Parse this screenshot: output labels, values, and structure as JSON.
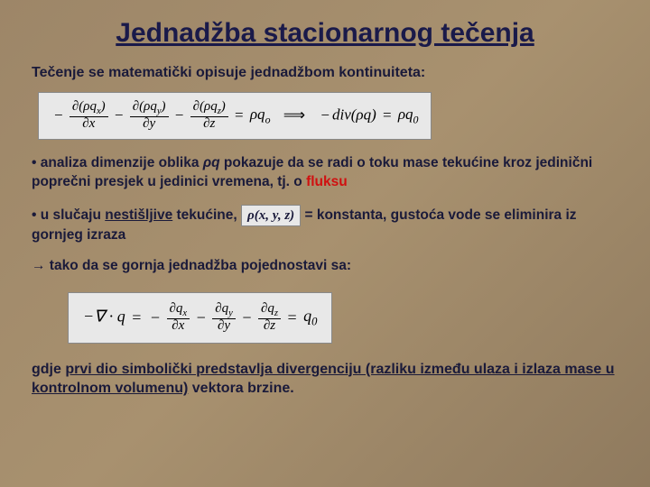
{
  "title": "Jednadžba stacionarnog tečenja",
  "intro": "Tečenje se matematički opisuje jednadžbom kontinuiteta:",
  "bullet1_a": "• analiza dimenzije oblika ",
  "bullet1_ital": "ρq",
  "bullet1_b": " pokazuje da se radi o toku mase tekućine kroz jedinični poprečni presjek u jedinici vremena, tj. o ",
  "bullet1_red": "fluksu",
  "bullet2_a": "• u slučaju ",
  "bullet2_ul": "nestišljive",
  "bullet2_b": " tekućine, ",
  "rho_expr": "ρ(x, y, z)",
  "bullet2_c": " = konstanta, gustoća vode se eliminira iz gornjeg izraza",
  "arrow": "→ tako da se gornja jednadžba pojednostavi sa:",
  "footer_a": "gdje ",
  "footer_ul": "prvi dio simbolički predstavlja divergenciju (razliku između ulaza i izlaza mase u kontrolnom volumenu)",
  "footer_b": " vektora brzine.",
  "eq1": {
    "f1n": "∂(ρq",
    "f1sub": "x",
    "f1n2": ")",
    "f1d": "∂x",
    "f2n": "∂(ρq",
    "f2sub": "y",
    "f2n2": ")",
    "f2d": "∂y",
    "f3n": "∂(ρq",
    "f3sub": "z",
    "f3n2": ")",
    "f3d": "∂z",
    "rhs1": "ρq",
    "rhs1sub": "o",
    "imp": "⟹",
    "rhs2a": "div(ρq)",
    "rhs2b": "ρq",
    "rhs2sub": "0"
  },
  "eq2": {
    "lhs": "−∇ · q",
    "f1n": "∂q",
    "f1sub": "x",
    "f1d": "∂x",
    "f2n": "∂q",
    "f2sub": "y",
    "f2d": "∂y",
    "f3n": "∂q",
    "f3sub": "z",
    "f3d": "∂z",
    "rhs": "q",
    "rhssub": "0"
  },
  "colors": {
    "bg1": "#9d8668",
    "bg2": "#a8916f",
    "bg3": "#8f7a5e",
    "text": "#1a1a3a",
    "red": "#d01010",
    "eqbox": "#e8e8e8"
  }
}
